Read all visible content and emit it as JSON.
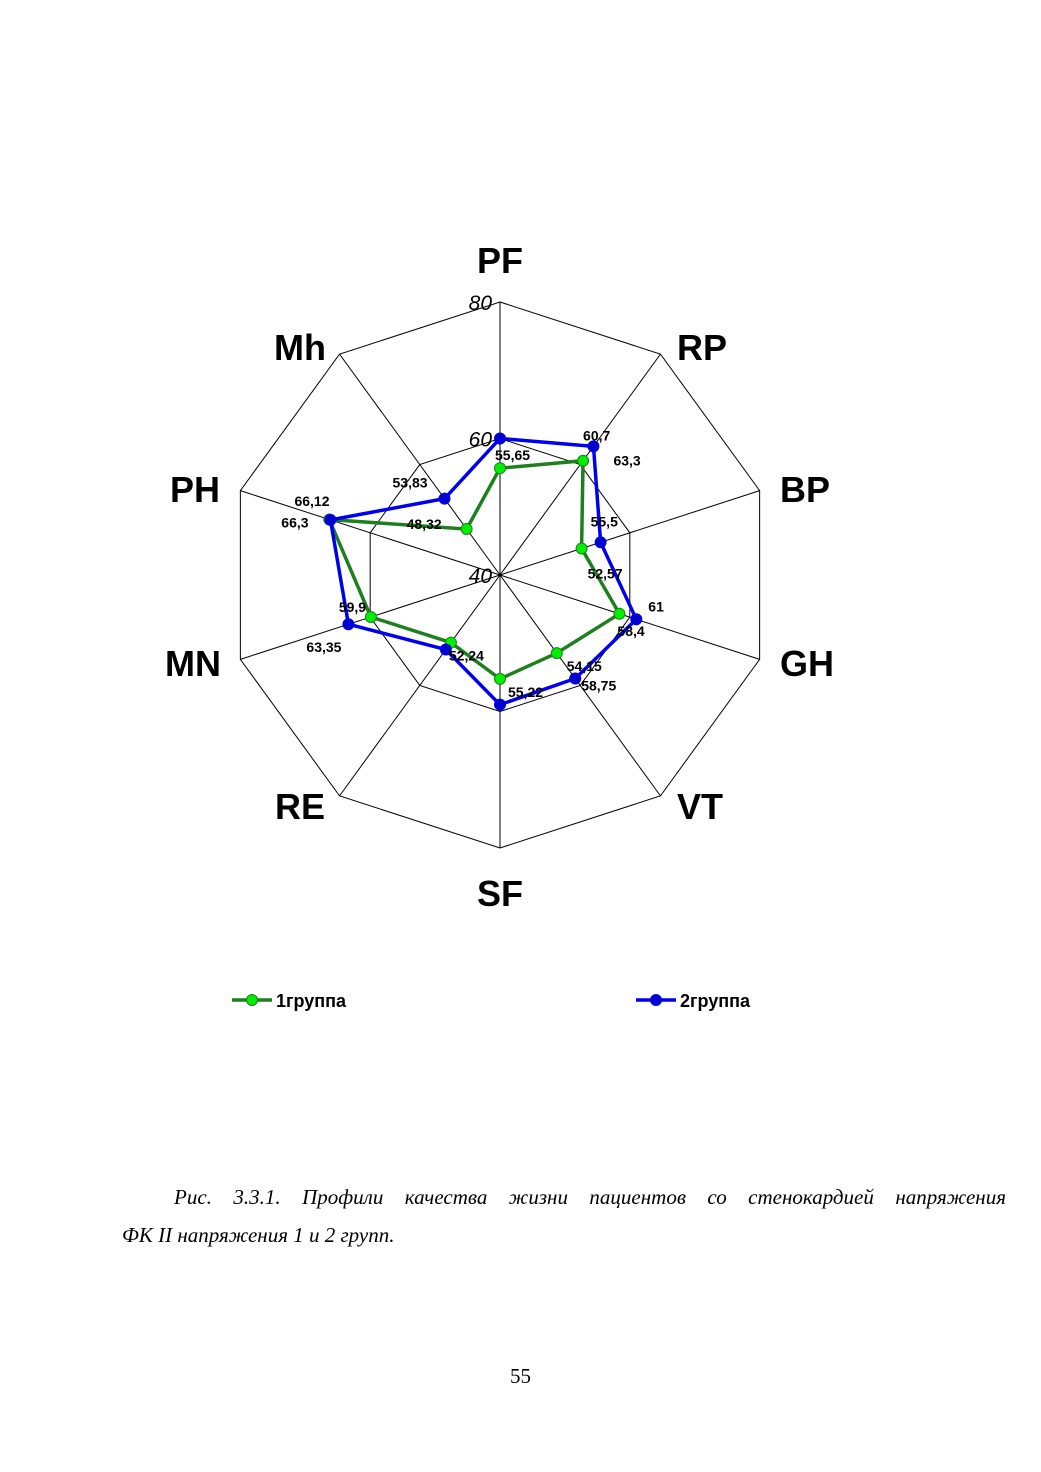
{
  "chart_data": {
    "type": "radar",
    "axes": [
      "PF",
      "RP",
      "BP",
      "GH",
      "VT",
      "SF",
      "RE",
      "MN",
      "PH",
      "Mh"
    ],
    "rlim": [
      40,
      80
    ],
    "ticks": [
      "40",
      "60",
      "80"
    ],
    "tick_values": [
      40,
      60,
      80
    ],
    "series": [
      {
        "name": "1группа",
        "color": "#1e7f1e",
        "marker_color": "#00ee00",
        "values": [
          55.65,
          60.7,
          52.57,
          58.4,
          54.15,
          55.22,
          52.24,
          59.9,
          66.3,
          48.32
        ],
        "labels": [
          "55,65",
          "60,7",
          "52,57",
          "58,4",
          "54,15",
          "55,22",
          "52,24",
          "59,9",
          "66,3",
          "48,32"
        ]
      },
      {
        "name": "2группа",
        "color": "#0000ee",
        "marker_color": "#0000cc",
        "values": [
          60.0,
          63.3,
          55.5,
          61,
          58.75,
          59.0,
          53.5,
          63.35,
          66.12,
          53.83
        ],
        "labels": [
          "",
          "63,3",
          "55,5",
          "61",
          "58,75",
          "",
          "",
          "63,35",
          "66,12",
          "53,83"
        ]
      }
    ],
    "grid": true,
    "legend_position": "bottom"
  },
  "caption": {
    "line1": "Рис. 3.3.1. Профили качества жизни пациентов со стенокардией напряжения",
    "line2": "ФК II  напряжения 1 и 2 групп."
  },
  "page_number": "55"
}
